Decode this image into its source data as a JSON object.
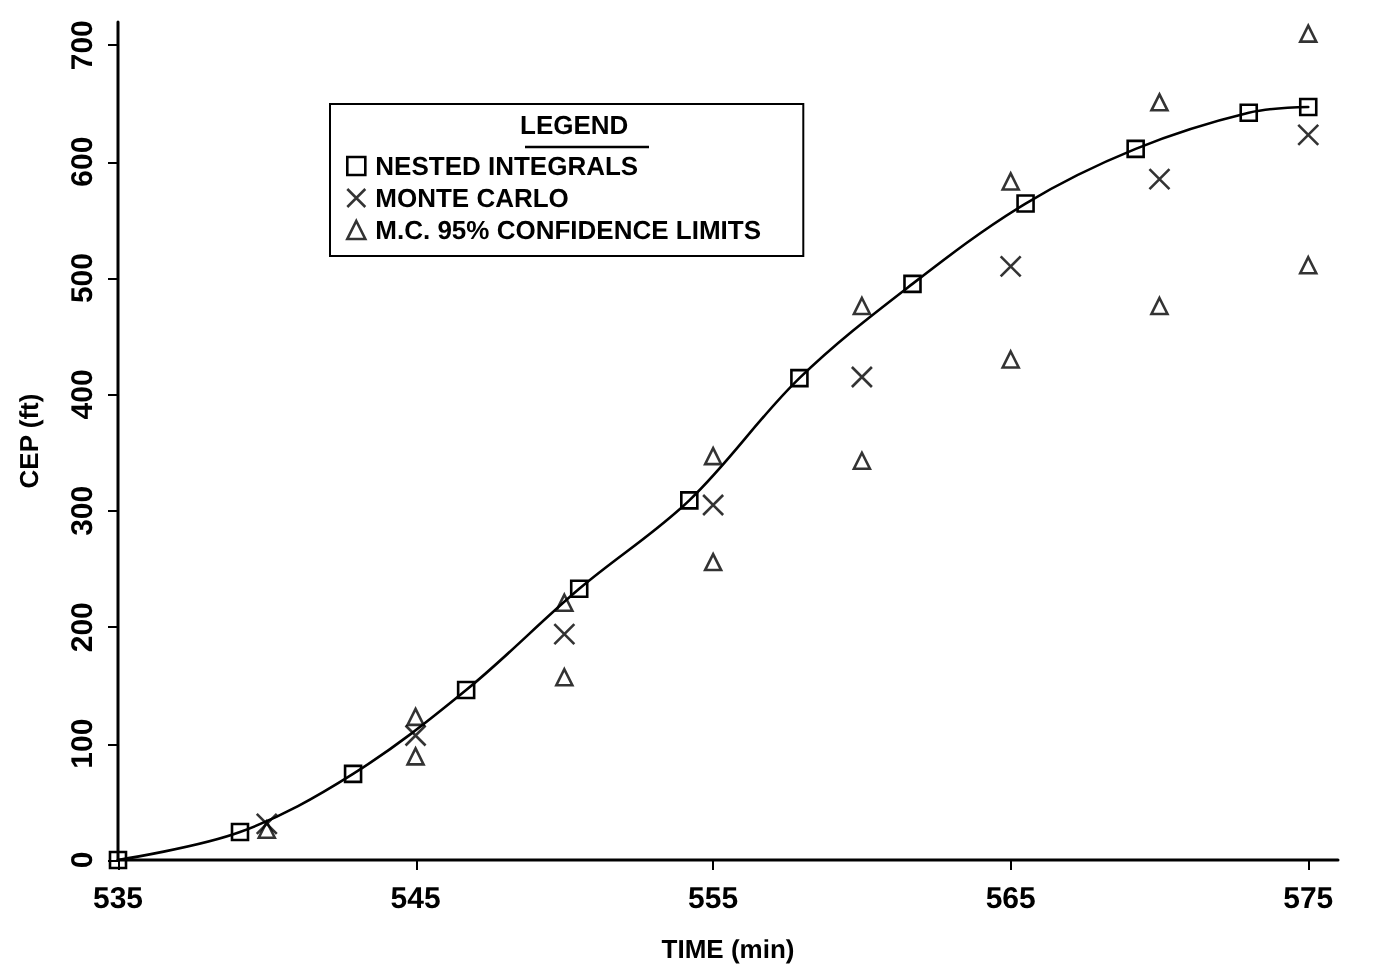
{
  "chart_data": {
    "type": "scatter",
    "xlabel": "TIME (min)",
    "ylabel": "CEP (ft)",
    "legend_title": "LEGEND",
    "legend": "top left",
    "grid": false,
    "xlim": [
      535,
      576
    ],
    "xticks": [
      535,
      545,
      555,
      565,
      575
    ],
    "ylim": [
      0,
      720
    ],
    "yticks": [
      0,
      100,
      200,
      300,
      400,
      500,
      600,
      700
    ],
    "series": [
      {
        "name": "NESTED INTEGRALS",
        "type": "line",
        "marker": "square",
        "line_style": "solid",
        "color": "#000000",
        "x": [
          535,
          539.1,
          542.9,
          546.7,
          550.5,
          554.2,
          557.9,
          561.7,
          565.5,
          569.2,
          573,
          575
        ],
        "values": [
          0,
          24,
          74,
          146,
          233,
          309,
          414,
          495,
          564,
          611,
          642,
          647
        ]
      },
      {
        "name": "MONTE CARLO",
        "marker": "cross",
        "color": "#000000",
        "x": [
          540,
          545,
          550,
          555,
          560,
          565,
          570,
          575
        ],
        "values": [
          31,
          107,
          194,
          305,
          415,
          510,
          585,
          623
        ]
      },
      {
        "name": "M.C. 95% CONFIDENCE LIMITS",
        "marker": "triangle",
        "color": "#000000",
        "x": [
          540,
          545,
          545,
          550,
          550,
          555,
          555,
          560,
          560,
          565,
          565,
          570,
          570,
          575,
          575
        ],
        "values": [
          26,
          123,
          89,
          221,
          157,
          347,
          256,
          476,
          343,
          583,
          430,
          651,
          476,
          710,
          511
        ]
      }
    ]
  }
}
